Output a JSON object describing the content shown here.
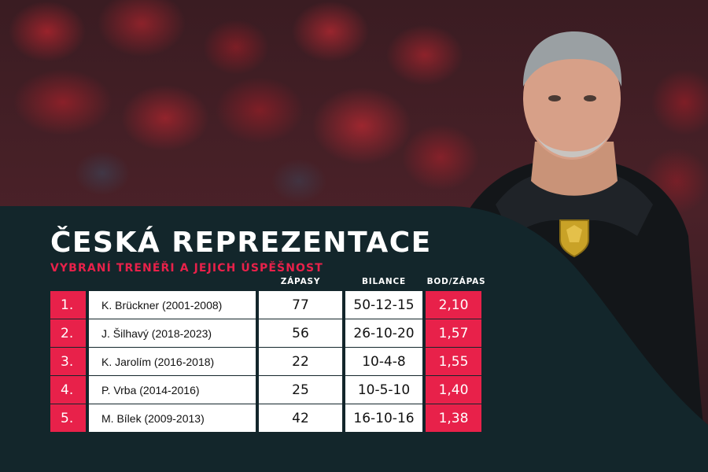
{
  "title": "ČESKÁ REPREZENTACE",
  "subtitle": "VYBRANÍ TRENÉŘI A JEJICH ÚSPĚŠNOST",
  "columns": {
    "matches": "ZÁPASY",
    "record": "BILANCE",
    "points": "BOD/ZÁPAS"
  },
  "rows": [
    {
      "rank": "1.",
      "name": "K. Brückner (2001-2008)",
      "matches": "77",
      "record": "50-12-15",
      "points": "2,10"
    },
    {
      "rank": "2.",
      "name": "J. Šilhavý (2018-2023)",
      "matches": "56",
      "record": "26-10-20",
      "points": "1,57"
    },
    {
      "rank": "3.",
      "name": "K. Jarolím (2016-2018)",
      "matches": "22",
      "record": "10-4-8",
      "points": "1,55"
    },
    {
      "rank": "4.",
      "name": "P. Vrba (2014-2016)",
      "matches": "25",
      "record": "10-5-10",
      "points": "1,40"
    },
    {
      "rank": "5.",
      "name": "M. Bílek (2009-2013)",
      "matches": "42",
      "record": "16-10-16",
      "points": "1,38"
    }
  ],
  "colors": {
    "accent": "#e8214a",
    "panel": "#13262b",
    "cell": "#ffffff"
  }
}
